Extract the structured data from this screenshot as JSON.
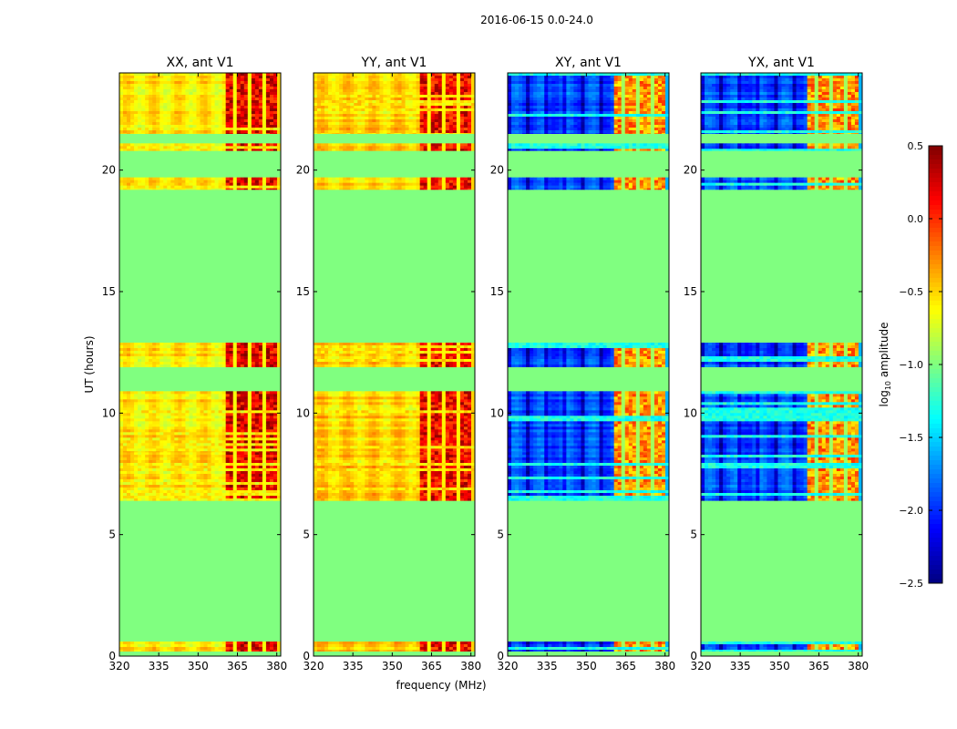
{
  "chart_data": {
    "type": "heatmap",
    "title": "2016-06-15 0.0-24.0",
    "xlabel": "frequency (MHz)",
    "ylabel": "UT (hours)",
    "xlim": [
      320,
      381.5
    ],
    "ylim": [
      0,
      24
    ],
    "x_ticks": [
      320,
      335,
      350,
      365,
      380
    ],
    "y_ticks": [
      0,
      5,
      10,
      15,
      20
    ],
    "colorbar": {
      "label_main": "log",
      "label_sub": "10",
      "label_rest": " amplitude",
      "range": [
        -2.5,
        0.5
      ],
      "ticks": [
        0.5,
        0.0,
        -0.5,
        -1.0,
        -1.5,
        -2.0,
        -2.5
      ],
      "tick_labels": [
        "0.5",
        "0.0",
        "−0.5",
        "−1.0",
        "−1.5",
        "−2.0",
        "−2.5"
      ],
      "colormap": "jet"
    },
    "fill_value": -1.0,
    "blocks_hours": [
      [
        0.2,
        0.6
      ],
      [
        6.4,
        8.4
      ],
      [
        8.4,
        10.9
      ],
      [
        11.9,
        12.9
      ],
      [
        19.2,
        19.7
      ],
      [
        20.8,
        21.1
      ],
      [
        21.5,
        24.0
      ]
    ],
    "band_edges_mhz": [
      361,
      365,
      368,
      372,
      375,
      379
    ],
    "panels": [
      {
        "name": "XX, ant V1",
        "base_level": -0.55,
        "band_level": 0.2,
        "stripes_level": -0.6
      },
      {
        "name": "YY, ant V1",
        "base_level": -0.5,
        "band_level": 0.15,
        "stripes_level": -0.55
      },
      {
        "name": "XY, ant V1",
        "base_level": -1.9,
        "band_level": -0.3,
        "stripes_level": -1.3
      },
      {
        "name": "YX, ant V1",
        "base_level": -1.9,
        "band_level": -0.3,
        "stripes_level": -1.3
      }
    ]
  }
}
